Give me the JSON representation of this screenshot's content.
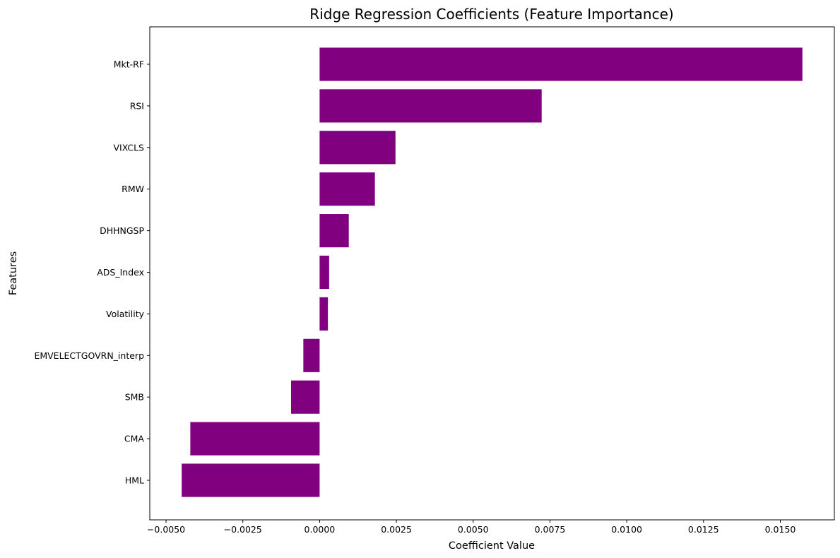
{
  "chart_data": {
    "type": "bar",
    "orientation": "horizontal",
    "title": "Ridge Regression Coefficients (Feature Importance)",
    "xlabel": "Coefficient Value",
    "ylabel": "Features",
    "xlim": [
      -0.00553,
      0.01676
    ],
    "xticks": [
      -0.005,
      -0.0025,
      0.0,
      0.0025,
      0.005,
      0.0075,
      0.01,
      0.0125,
      0.015
    ],
    "xtick_labels": [
      "−0.0050",
      "−0.0025",
      "0.0000",
      "0.0025",
      "0.0050",
      "0.0075",
      "0.0100",
      "0.0125",
      "0.0150"
    ],
    "categories": [
      "Mkt-RF",
      "RSI",
      "VIXCLS",
      "RMW",
      "DHHNGSP",
      "ADS_Index",
      "Volatility",
      "EMVELECTGOVRN_interp",
      "SMB",
      "CMA",
      "HML"
    ],
    "values": [
      0.01572,
      0.00723,
      0.00247,
      0.0018,
      0.00095,
      0.00031,
      0.00027,
      -0.00053,
      -0.00093,
      -0.00421,
      -0.00449
    ],
    "bar_color": "#800080",
    "grid": false,
    "legend": false
  }
}
